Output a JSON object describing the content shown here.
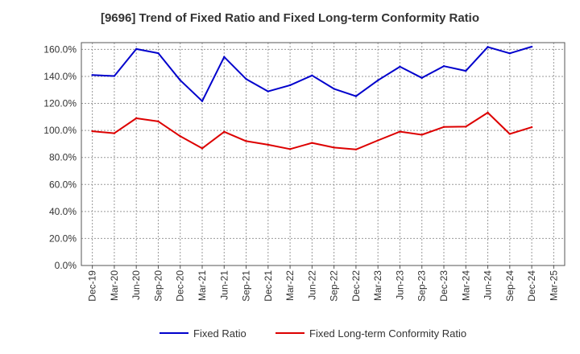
{
  "chart_data": {
    "type": "line",
    "title": "[9696]  Trend of Fixed Ratio and Fixed Long-term Conformity Ratio",
    "xlabel": "",
    "ylabel": "",
    "ylim": [
      0,
      165
    ],
    "y_ticks": [
      "0.0%",
      "20.0%",
      "40.0%",
      "60.0%",
      "80.0%",
      "100.0%",
      "120.0%",
      "140.0%",
      "160.0%"
    ],
    "y_tick_values": [
      0,
      20,
      40,
      60,
      80,
      100,
      120,
      140,
      160
    ],
    "grid": true,
    "legend_position": "bottom",
    "categories": [
      "Dec-19",
      "Mar-20",
      "Jun-20",
      "Sep-20",
      "Dec-20",
      "Mar-21",
      "Jun-21",
      "Sep-21",
      "Dec-21",
      "Mar-22",
      "Jun-22",
      "Sep-22",
      "Dec-22",
      "Mar-23",
      "Jun-23",
      "Sep-23",
      "Dec-23",
      "Mar-24",
      "Jun-24",
      "Sep-24",
      "Dec-24",
      "Mar-25"
    ],
    "series": [
      {
        "name": "Fixed Ratio",
        "color": "#0000cc",
        "values": [
          141.0,
          140.3,
          160.3,
          157.2,
          137.2,
          121.7,
          154.4,
          138.1,
          128.9,
          133.5,
          140.7,
          130.8,
          125.3,
          137.1,
          147.2,
          138.9,
          147.6,
          144.1,
          161.8,
          157.1,
          162.0,
          null
        ]
      },
      {
        "name": "Fixed Long-term Conformity Ratio",
        "color": "#dd0000",
        "values": [
          99.4,
          97.9,
          109.0,
          106.7,
          95.7,
          86.7,
          99.0,
          92.1,
          89.4,
          86.2,
          90.8,
          87.3,
          85.9,
          92.6,
          99.1,
          96.8,
          102.6,
          102.8,
          113.2,
          97.4,
          102.4,
          null
        ]
      }
    ]
  }
}
